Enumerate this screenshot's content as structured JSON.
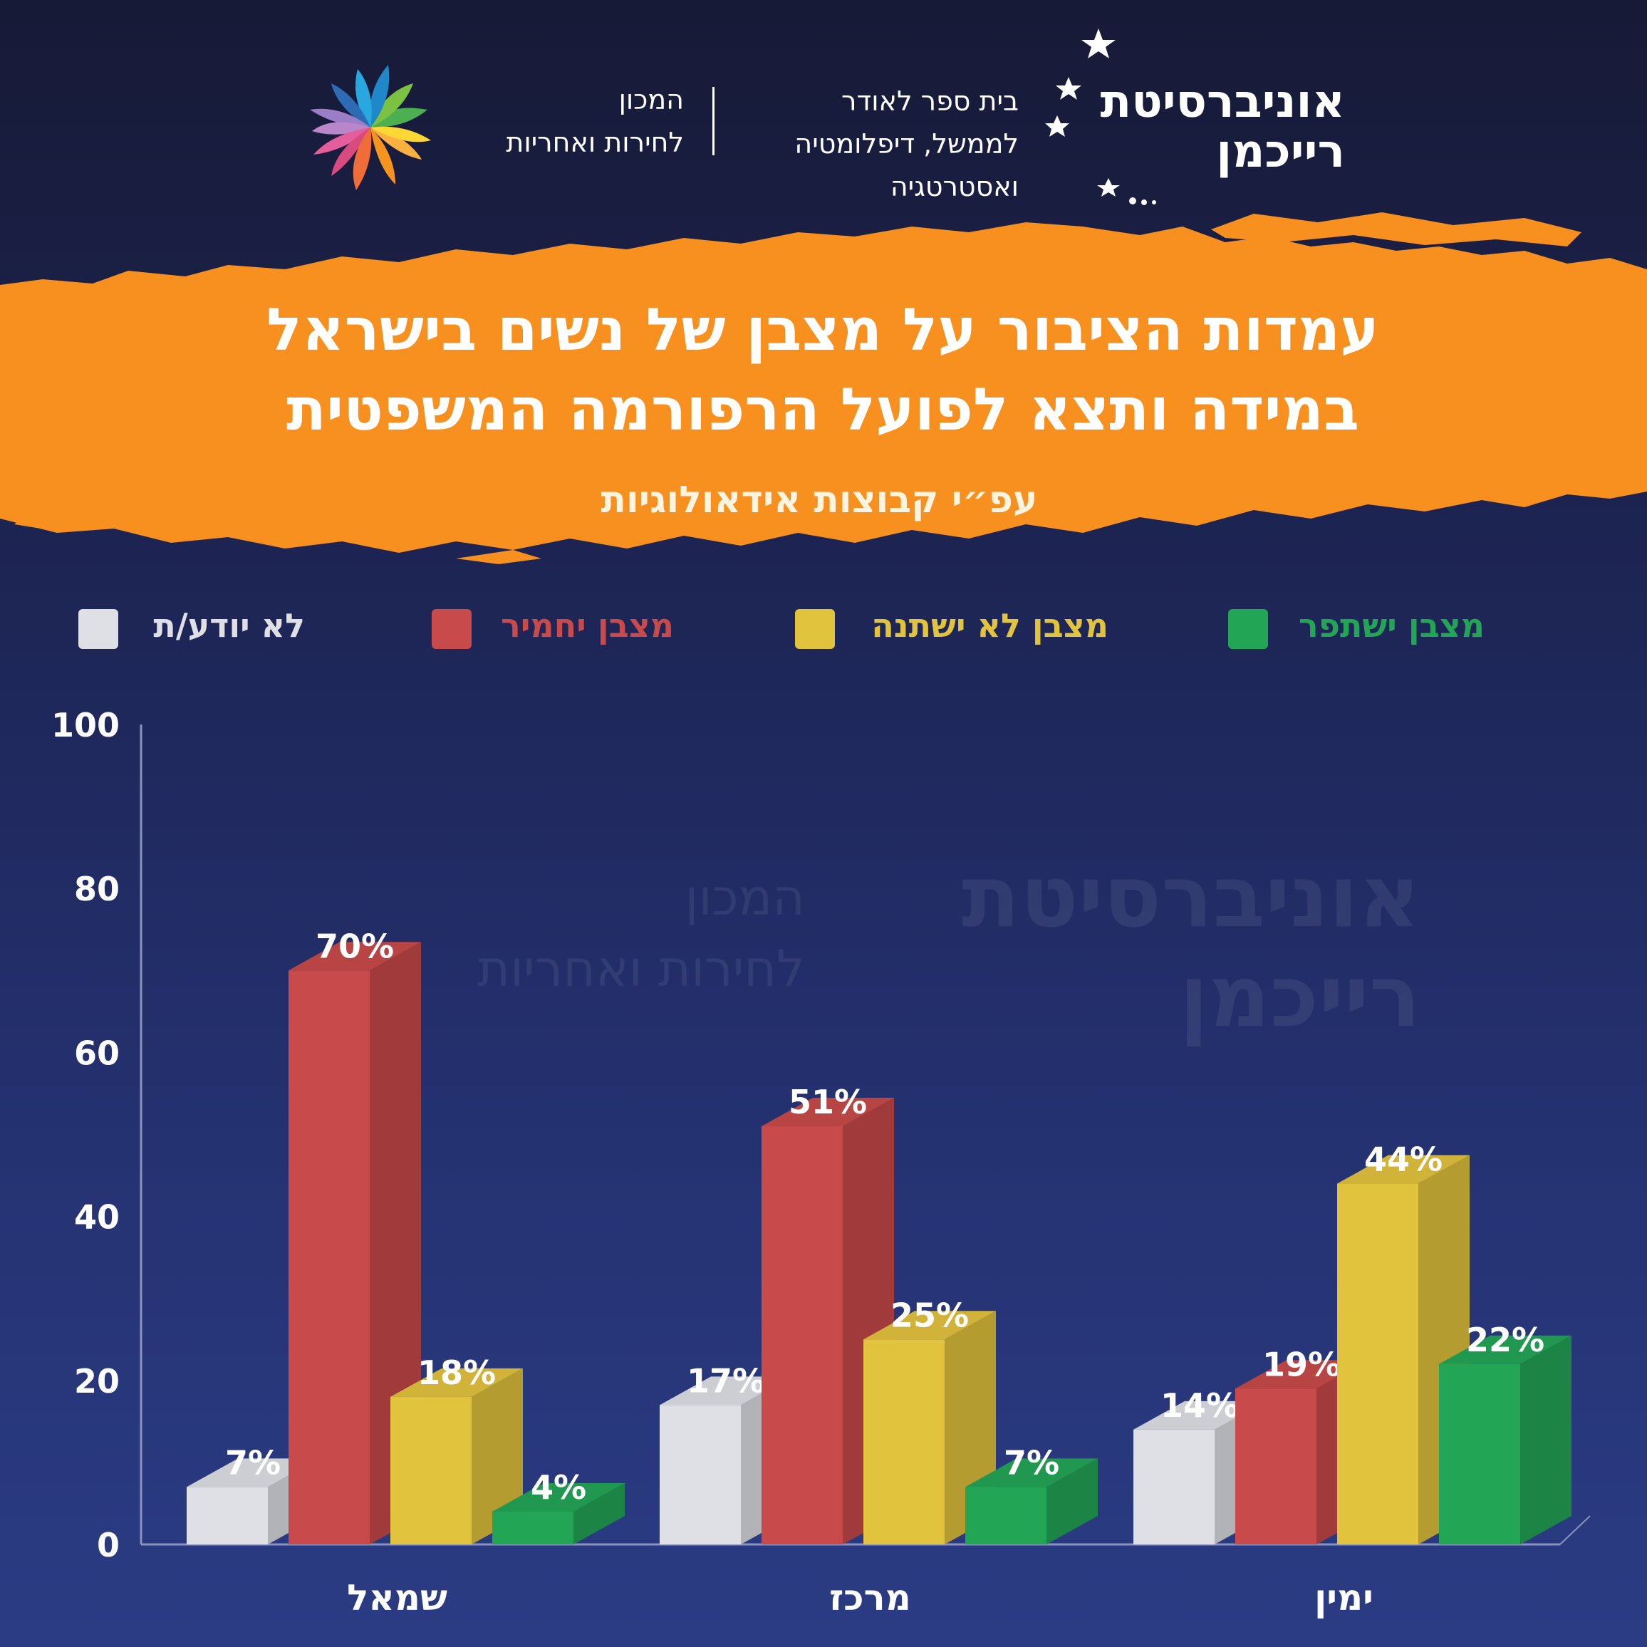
{
  "header": {
    "university_name_line1": "אוניברסיטת",
    "university_name_line2": "רייכמן",
    "school_line1": "בית ספר לאודר",
    "school_line2": "לממשל, דיפלומטיה",
    "school_line3": "ואסטרטגיה",
    "institute_line1": "המכון",
    "institute_line2": "לחירות ואחריות"
  },
  "title_line1": "עמדות הציבור על מצבן של נשים בישראל",
  "title_line2": "במידה ותצא לפועל הרפורמה המשפטית",
  "subtitle": "עפ״י קבוצות אידאולוגיות",
  "colors": {
    "green": "#23a556",
    "yellow": "#e2c33d",
    "red": "#c94a4a",
    "light": "#dfe0e5",
    "banner": "#f7901e"
  },
  "chart_data": {
    "type": "bar",
    "categories": [
      "שמאל",
      "מרכז",
      "ימין"
    ],
    "series": [
      {
        "name": "לא יודע/ת",
        "color": "#dfe0e5",
        "values": [
          7,
          17,
          14
        ]
      },
      {
        "name": "מצבן יחמיר",
        "color": "#c94a4a",
        "values": [
          70,
          51,
          19
        ]
      },
      {
        "name": "מצבן לא ישתנה",
        "color": "#e2c33d",
        "values": [
          18,
          25,
          44
        ]
      },
      {
        "name": "מצבן ישתפר",
        "color": "#23a556",
        "values": [
          4,
          7,
          22
        ]
      }
    ],
    "value_labels": [
      [
        "7%",
        "17%",
        "14%"
      ],
      [
        "70%",
        "51%",
        "19%"
      ],
      [
        "18%",
        "25%",
        "44%"
      ],
      [
        "4%",
        "7%",
        "22%"
      ]
    ],
    "y_ticks": [
      "0",
      "20",
      "40",
      "60",
      "80",
      "100"
    ],
    "ylim": [
      0,
      100
    ],
    "legend_position": "top"
  }
}
